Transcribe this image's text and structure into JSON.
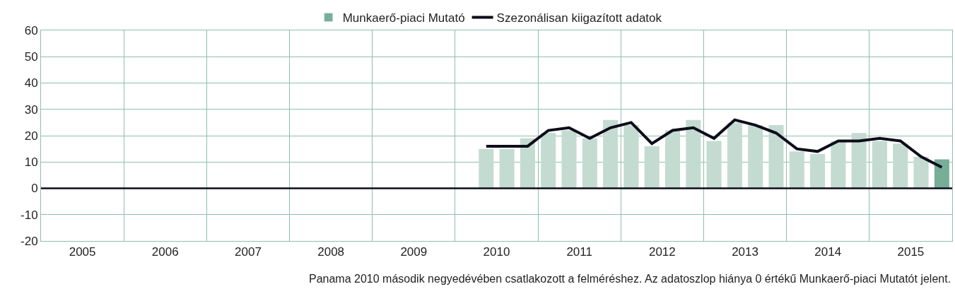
{
  "chart_data": {
    "type": "bar",
    "x": [
      2010.375,
      2010.625,
      2010.875,
      2011.125,
      2011.375,
      2011.625,
      2011.875,
      2012.125,
      2012.375,
      2012.625,
      2012.875,
      2013.125,
      2013.375,
      2013.625,
      2013.875,
      2014.125,
      2014.375,
      2014.625,
      2014.875,
      2015.125,
      2015.375,
      2015.625,
      2015.875
    ],
    "series": [
      {
        "name": "Munkaerő-piaci Mutató",
        "color": "#76ae98",
        "colors": [
          "#c4dbd2",
          "#c4dbd2",
          "#c4dbd2",
          "#c4dbd2",
          "#c4dbd2",
          "#c4dbd2",
          "#c4dbd2",
          "#c4dbd2",
          "#c4dbd2",
          "#c4dbd2",
          "#c4dbd2",
          "#c4dbd2",
          "#c4dbd2",
          "#c4dbd2",
          "#c4dbd2",
          "#c4dbd2",
          "#c4dbd2",
          "#c4dbd2",
          "#c4dbd2",
          "#c4dbd2",
          "#c4dbd2",
          "#c4dbd2",
          "#76ae98"
        ],
        "values": [
          15,
          15,
          19,
          21,
          22,
          19,
          26,
          24,
          16,
          22,
          26,
          18,
          25,
          24,
          24,
          14,
          13,
          18,
          21,
          18,
          17,
          12,
          11
        ]
      },
      {
        "name": "Szezonálisan kiigazított adatok",
        "type": "line",
        "color": "#0d0d1a",
        "values": [
          16,
          16,
          16,
          22,
          23,
          19,
          23,
          25,
          17,
          22,
          23,
          19,
          26,
          24,
          21,
          15,
          14,
          18,
          18,
          19,
          18,
          12,
          8
        ]
      }
    ],
    "xlim": [
      2005,
      2016
    ],
    "xticks": [
      {
        "value": 2005,
        "label": null
      },
      {
        "value": 2005.5,
        "label": "2005"
      },
      {
        "value": 2006,
        "label": null
      },
      {
        "value": 2006.5,
        "label": "2006"
      },
      {
        "value": 2007,
        "label": null
      },
      {
        "value": 2007.5,
        "label": "2007"
      },
      {
        "value": 2008,
        "label": null
      },
      {
        "value": 2008.5,
        "label": "2008"
      },
      {
        "value": 2009,
        "label": null
      },
      {
        "value": 2009.5,
        "label": "2009"
      },
      {
        "value": 2010,
        "label": null
      },
      {
        "value": 2010.5,
        "label": "2010"
      },
      {
        "value": 2011,
        "label": null
      },
      {
        "value": 2011.5,
        "label": "2011"
      },
      {
        "value": 2012,
        "label": null
      },
      {
        "value": 2012.5,
        "label": "2012"
      },
      {
        "value": 2013,
        "label": null
      },
      {
        "value": 2013.5,
        "label": "2013"
      },
      {
        "value": 2014,
        "label": null
      },
      {
        "value": 2014.5,
        "label": "2014"
      },
      {
        "value": 2015,
        "label": null
      },
      {
        "value": 2015.5,
        "label": "2015"
      },
      {
        "value": 2016,
        "label": null
      }
    ],
    "ylim": [
      -20,
      60
    ],
    "yticks": [
      -20,
      -10,
      0,
      10,
      20,
      30,
      40,
      50,
      60
    ],
    "ref_lines": [
      {
        "axis": "y",
        "value": 0,
        "color": "#0d0d1a"
      }
    ],
    "grid": true,
    "legend": "top",
    "line_style": "solid",
    "marker": "none",
    "annotations": [
      "Panama 2010 második negyedévében csatlakozott a felméréshez. Az adatoszlop hiánya 0 értékű Munkaerő-piaci Mutatót jelent."
    ]
  }
}
